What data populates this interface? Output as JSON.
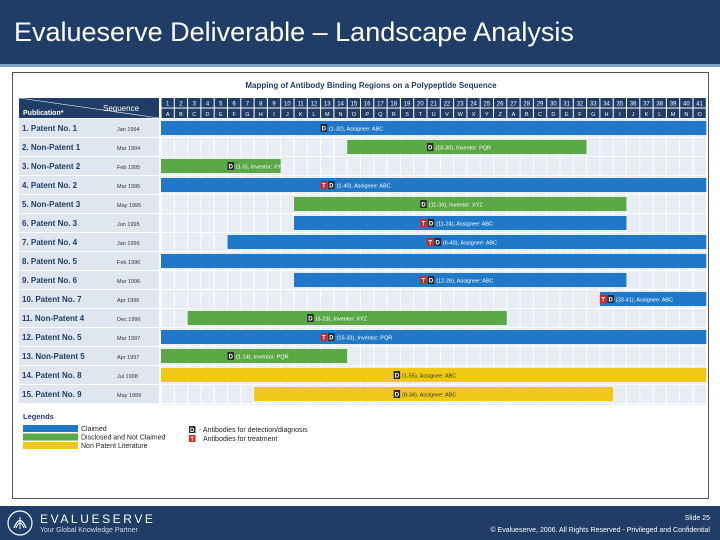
{
  "header": {
    "title": "Evalueserve Deliverable – Landscape Analysis"
  },
  "chart": {
    "title": "Mapping of Antibody Binding Regions on a Polypeptide Sequence",
    "publication_label": "Publication*",
    "sequence_label": "Sequence",
    "numbers": [
      "1",
      "2",
      "3",
      "4",
      "5",
      "6",
      "7",
      "8",
      "9",
      "10",
      "11",
      "12",
      "13",
      "14",
      "15",
      "16",
      "17",
      "18",
      "19",
      "20",
      "21",
      "22",
      "23",
      "24",
      "25",
      "26",
      "27",
      "28",
      "29",
      "30",
      "31",
      "32",
      "33",
      "34",
      "35",
      "36",
      "37",
      "38",
      "39",
      "40",
      "41"
    ],
    "letters": [
      "A",
      "B",
      "C",
      "D",
      "E",
      "F",
      "G",
      "H",
      "I",
      "J",
      "K",
      "L",
      "M",
      "N",
      "O",
      "P",
      "Q",
      "R",
      "S",
      "T",
      "U",
      "V",
      "W",
      "X",
      "Y",
      "Z",
      "A",
      "B",
      "C",
      "D",
      "E",
      "F",
      "G",
      "H",
      "I",
      "J",
      "K",
      "L",
      "M",
      "N",
      "O"
    ],
    "rows": [
      {
        "label": "1. Patent No. 1",
        "date": "Jan 1994",
        "start": 1,
        "end": 41,
        "type": "claimed",
        "markers": [
          "D"
        ],
        "text": "(1-32), Assignee: ABC"
      },
      {
        "label": "2. Non-Patent 1",
        "date": "Mar 1994",
        "start": 15,
        "end": 32,
        "type": "disclosed",
        "markers": [
          "D"
        ],
        "text": "(18-30), Inventor: PQR"
      },
      {
        "label": "3. Non-Patent 2",
        "date": "Feb 1995",
        "start": 1,
        "end": 9,
        "type": "disclosed",
        "markers": [
          "D"
        ],
        "text": "(1-5), Inventor: XYZ"
      },
      {
        "label": "4. Patent No. 2",
        "date": "Mar 1995",
        "start": 1,
        "end": 41,
        "type": "claimed",
        "markers": [
          "T",
          "D"
        ],
        "text": "(1-40), Assignee: ABC"
      },
      {
        "label": "5. Non-Patent 3",
        "date": "May 1995",
        "start": 11,
        "end": 35,
        "type": "disclosed",
        "markers": [
          "D"
        ],
        "text": "(11-34), Inventor: XYZ"
      },
      {
        "label": "6. Patent No. 3",
        "date": "Jun 1995",
        "start": 11,
        "end": 35,
        "type": "claimed",
        "markers": [
          "T",
          "D"
        ],
        "text": "(11-24), Assignee: ABC"
      },
      {
        "label": "7. Patent No. 4",
        "date": "Jan 1996",
        "start": 6,
        "end": 41,
        "type": "claimed",
        "markers": [
          "T",
          "D"
        ],
        "text": "(6-40), Assignee: ABC"
      },
      {
        "label": "8. Patent No. 5",
        "date": "Feb 1996",
        "start": 1,
        "end": 41,
        "type": "claimed",
        "markers": [],
        "text": ""
      },
      {
        "label": "9. Patent No. 6",
        "date": "Mar 1996",
        "start": 11,
        "end": 35,
        "type": "claimed",
        "markers": [
          "T",
          "D"
        ],
        "text": "(12-26), Assignee: ABC"
      },
      {
        "label": "10. Patent No. 7",
        "date": "Apr 1996",
        "start": 34,
        "end": 41,
        "type": "claimed",
        "markers": [
          "T",
          "D"
        ],
        "text": "(33-41), Assignee: ABC"
      },
      {
        "label": "11. Non-Patent 4",
        "date": "Dec 1996",
        "start": 3,
        "end": 26,
        "type": "disclosed",
        "markers": [
          "D"
        ],
        "text": "(3-23), Inventor: XYZ"
      },
      {
        "label": "12. Patent No. 5",
        "date": "Mar 1997",
        "start": 1,
        "end": 41,
        "type": "claimed",
        "markers": [
          "T",
          "D"
        ],
        "text": "(15-33), Inventor: PQR"
      },
      {
        "label": "13. Non-Patent 5",
        "date": "Apr 1997",
        "start": 1,
        "end": 14,
        "type": "disclosed",
        "markers": [
          "D"
        ],
        "text": "(1-14), Inventor: PQR"
      },
      {
        "label": "14. Patent No. 8",
        "date": "Jul 1998",
        "start": 1,
        "end": 41,
        "type": "nonpatent",
        "markers": [
          "D"
        ],
        "text": "(1-55), Assignee: ABC"
      },
      {
        "label": "15. Patent No. 9",
        "date": "May 1999",
        "start": 8,
        "end": 34,
        "type": "nonpatent",
        "markers": [
          "D"
        ],
        "text": "(8-34), Assignee: ABC"
      }
    ],
    "legend": {
      "title": "Legends",
      "claimed": "Claimed",
      "disclosed": "Disclosed and Not Claimed",
      "nonpatent": "Non Patent Literature",
      "d_marker": "D",
      "t_marker": "T",
      "d_text": "- Antibodies for detection/diagnosis",
      "t_text": "Antibodies for treatment"
    },
    "colors": {
      "claimed": "#1f78c8",
      "disclosed": "#5aa845",
      "nonpatent": "#f0c818",
      "header": "#1f3d66",
      "grid": "#e8ecf4",
      "rowlabel": "#dfe6f0"
    }
  },
  "footer": {
    "brand": "EVALUESERVE",
    "tagline": "Your Global Knowledge Partner",
    "slide": "Slide 25",
    "copyright": "© Evalueserve, 2006. All Rights Reserved - Privileged and Confidential"
  }
}
